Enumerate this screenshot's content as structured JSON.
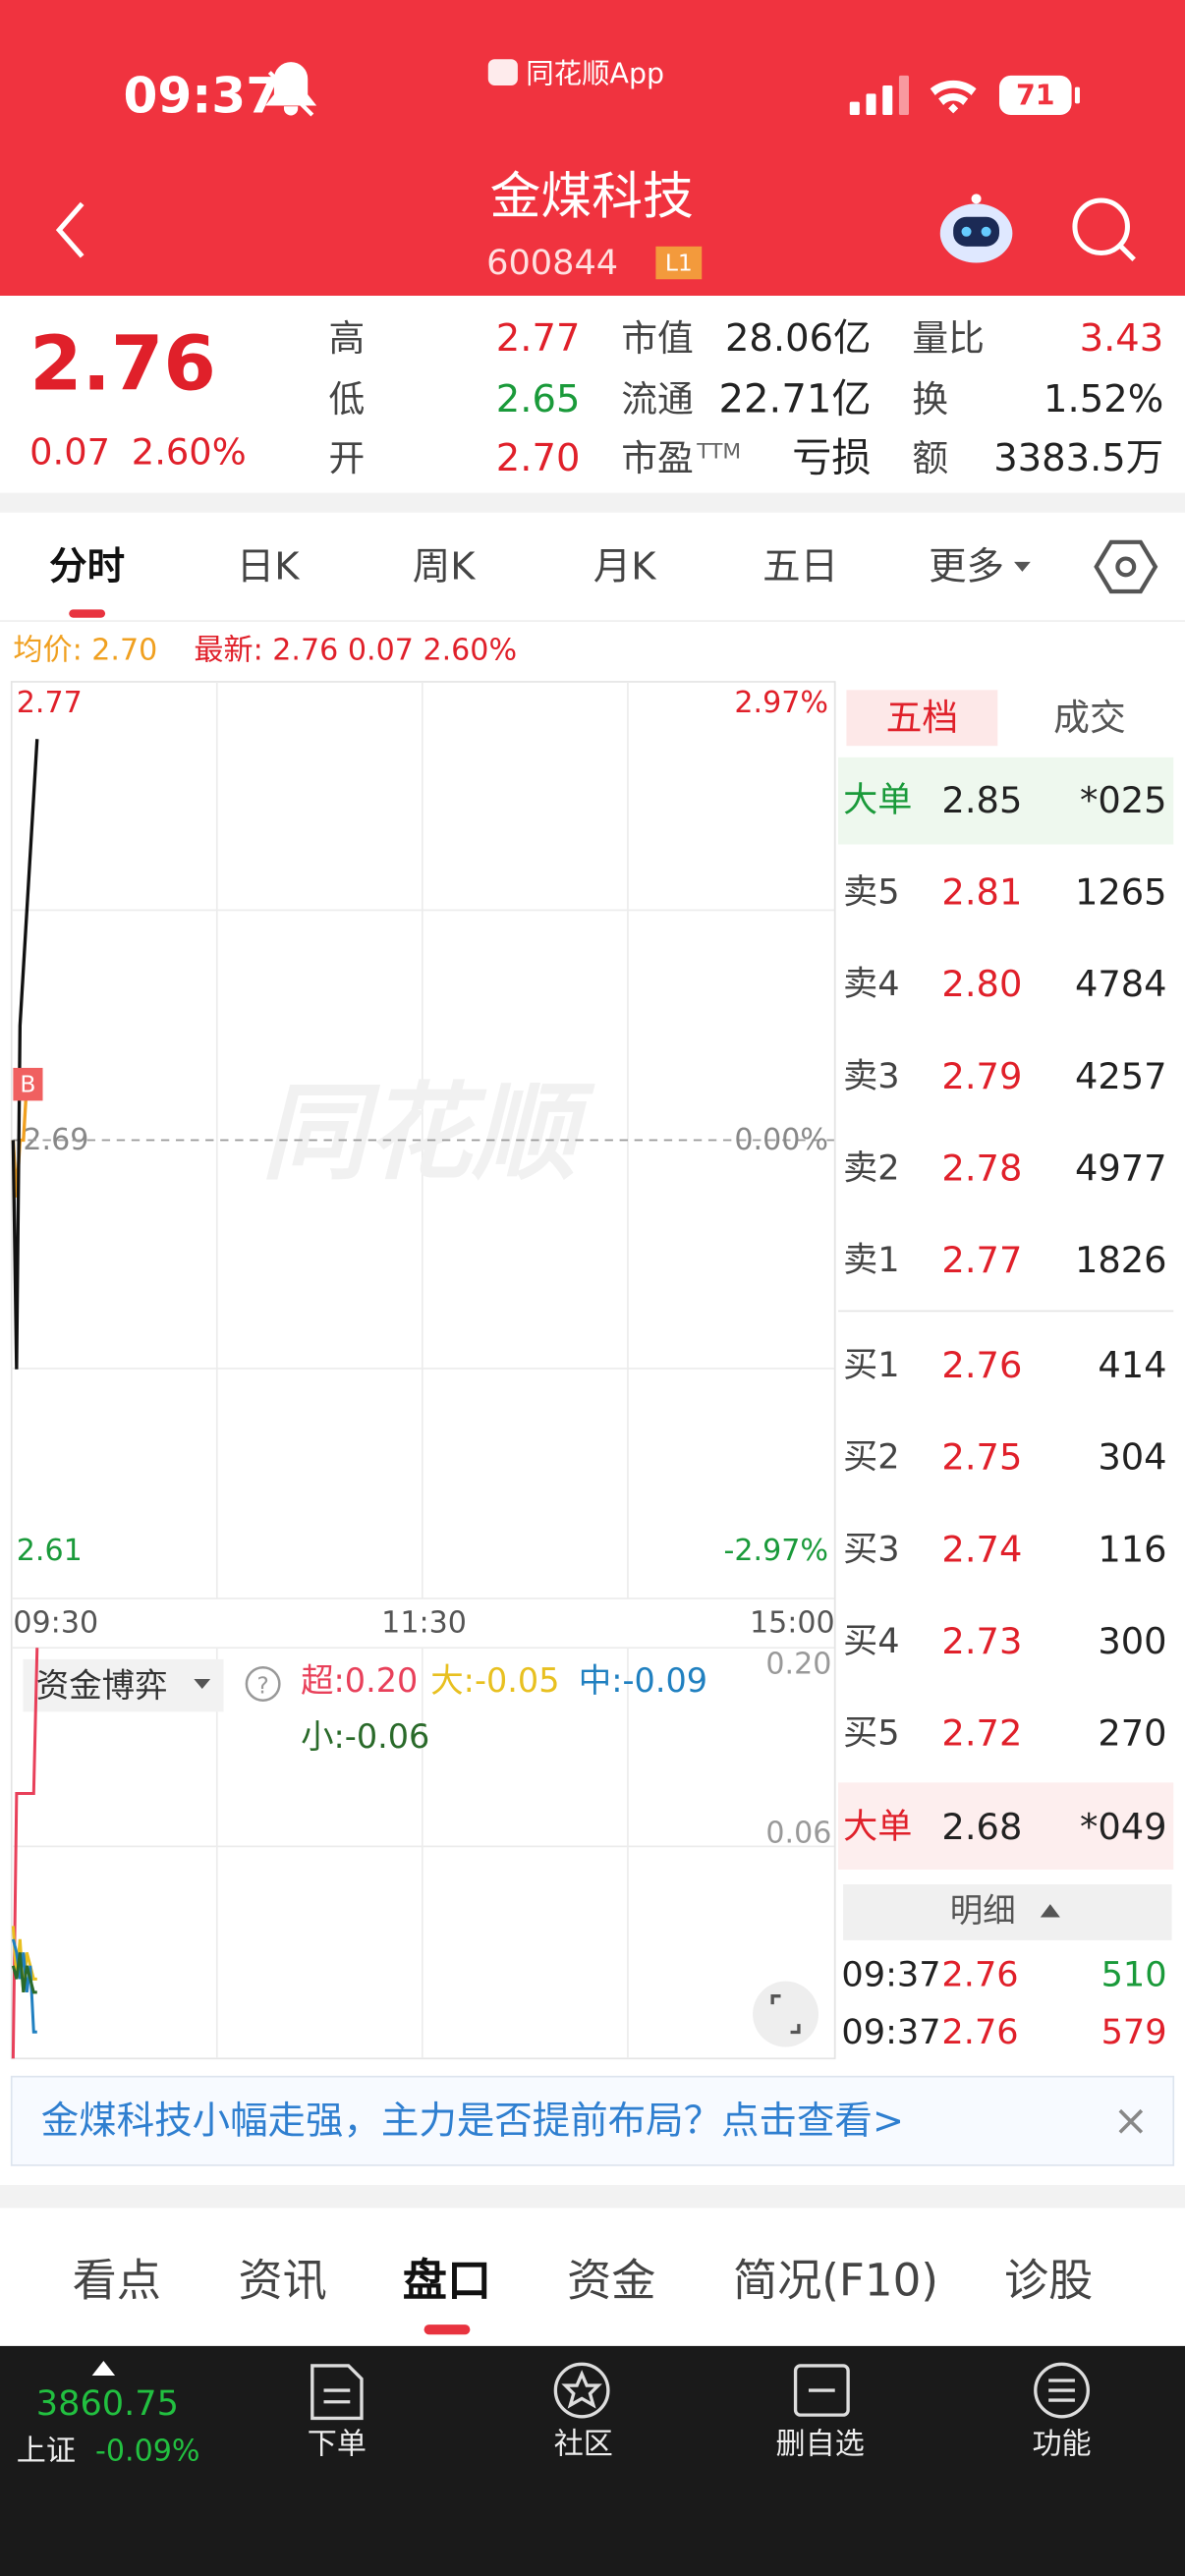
{
  "status_bar": {
    "time": "09:37",
    "app_name": "同花顺App",
    "battery": "71"
  },
  "header": {
    "title": "金煤科技",
    "code": "600844",
    "level": "L1"
  },
  "quote": {
    "price": "2.76",
    "change": "0.07",
    "change_pct": "2.60%",
    "stats": [
      {
        "label": "高",
        "value": "2.77",
        "color": "#e0202a"
      },
      {
        "label": "低",
        "value": "2.65",
        "color": "#1a9a3a"
      },
      {
        "label": "开",
        "value": "2.70",
        "color": "#e0202a"
      },
      {
        "label": "市值",
        "value": "28.06亿",
        "color": "#222222"
      },
      {
        "label": "流通",
        "value": "22.71亿",
        "color": "#222222"
      },
      {
        "label": "市盈",
        "sup": "TTM",
        "value": "亏损",
        "color": "#222222"
      },
      {
        "label": "量比",
        "value": "3.43",
        "color": "#e0202a"
      },
      {
        "label": "换",
        "value": "1.52%",
        "color": "#222222"
      },
      {
        "label": "额",
        "value": "3383.5万",
        "color": "#222222"
      }
    ]
  },
  "tabs": [
    "分时",
    "日K",
    "周K",
    "月K",
    "五日",
    "更多"
  ],
  "info": {
    "avg": "均价: 2.70",
    "latest": "最新: 2.76  0.07  2.60%"
  },
  "chart_data": [
    {
      "type": "line",
      "watermark": "同花顺",
      "marker": "B",
      "x": [
        0,
        1,
        2,
        3,
        4,
        5,
        6,
        7
      ],
      "xlim": [
        0,
        240
      ],
      "xticks": [
        {
          "value": 0,
          "label": "09:30"
        },
        {
          "value": 120,
          "label": "11:30"
        },
        {
          "value": 240,
          "label": "15:00"
        }
      ],
      "ylim": [
        2.61,
        2.77
      ],
      "yticks": [
        2.77,
        2.69,
        2.61
      ],
      "y2lim": [
        -2.97,
        2.97
      ],
      "y2ticks": [
        {
          "value": 2.97,
          "label": "2.97%"
        },
        {
          "value": 0,
          "label": "0.00%"
        },
        {
          "value": -2.97,
          "label": "-2.97%"
        }
      ],
      "series": [
        {
          "color": "#111111",
          "values": [
            2.69,
            2.65,
            2.71,
            2.72,
            2.73,
            2.74,
            2.75,
            2.76
          ]
        },
        {
          "color": "#f0a020",
          "values": [
            2.69,
            2.68,
            2.69,
            2.69,
            2.7,
            2.7,
            2.7,
            2.7
          ]
        }
      ]
    },
    {
      "type": "line",
      "title": "资金博弈",
      "x": [
        0,
        1,
        2,
        3,
        4,
        5,
        6,
        7
      ],
      "xlim": [
        0,
        240
      ],
      "ylim": [
        -0.11,
        0.2
      ],
      "yticks": [
        {
          "value": 0.2,
          "label": "0.20"
        },
        0.06
      ],
      "series": [
        {
          "name": "超:0.20",
          "color": "#e8405a",
          "values": [
            -0.11,
            0.09,
            0.09,
            0.09,
            0.09,
            0.09,
            0.09,
            0.2
          ]
        },
        {
          "name": "大:-0.05",
          "color": "#e8c020",
          "values": [
            -0.01,
            -0.05,
            -0.02,
            -0.06,
            -0.03,
            -0.04,
            -0.05,
            -0.05
          ]
        },
        {
          "name": "中:-0.09",
          "color": "#2080c0",
          "values": [
            -0.02,
            -0.03,
            -0.05,
            -0.03,
            -0.06,
            -0.04,
            -0.09,
            -0.09
          ]
        },
        {
          "name": "小:-0.06",
          "color": "#2a6a2a",
          "values": [
            -0.04,
            -0.05,
            -0.03,
            -0.06,
            -0.04,
            -0.05,
            -0.06,
            -0.06
          ]
        }
      ]
    }
  ],
  "order_book": {
    "tabs": [
      "五档",
      "成交"
    ],
    "big_sell": [
      "大单",
      "2.85",
      "*025"
    ],
    "asks": [
      [
        "卖5",
        "2.81",
        "1265"
      ],
      [
        "卖4",
        "2.80",
        "4784"
      ],
      [
        "卖3",
        "2.79",
        "4257"
      ],
      [
        "卖2",
        "2.78",
        "4977"
      ],
      [
        "卖1",
        "2.77",
        "1826"
      ]
    ],
    "bids": [
      [
        "买1",
        "2.76",
        "414"
      ],
      [
        "买2",
        "2.75",
        "304"
      ],
      [
        "买3",
        "2.74",
        "116"
      ],
      [
        "买4",
        "2.73",
        "300"
      ],
      [
        "买5",
        "2.72",
        "270"
      ]
    ],
    "big_buy": [
      "大单",
      "2.68",
      "*049"
    ],
    "detail_label": "明细",
    "trades": [
      {
        "time": "09:37",
        "price": "2.76",
        "volume": "510",
        "color": "#1a9a3a"
      },
      {
        "time": "09:37",
        "price": "2.76",
        "volume": "579",
        "color": "#e0202a"
      }
    ]
  },
  "banner": {
    "text": "金煤科技小幅走强，主力是否提前布局？点击查看>",
    "close": "×"
  },
  "section_tabs": [
    "看点",
    "资讯",
    "盘口",
    "资金",
    "简况(F10)",
    "诊股"
  ],
  "bottom_nav": {
    "index_value": "3860.75",
    "index_name": "上证",
    "index_change": "-0.09%",
    "items": [
      "下单",
      "社区",
      "删自选",
      "功能"
    ]
  }
}
